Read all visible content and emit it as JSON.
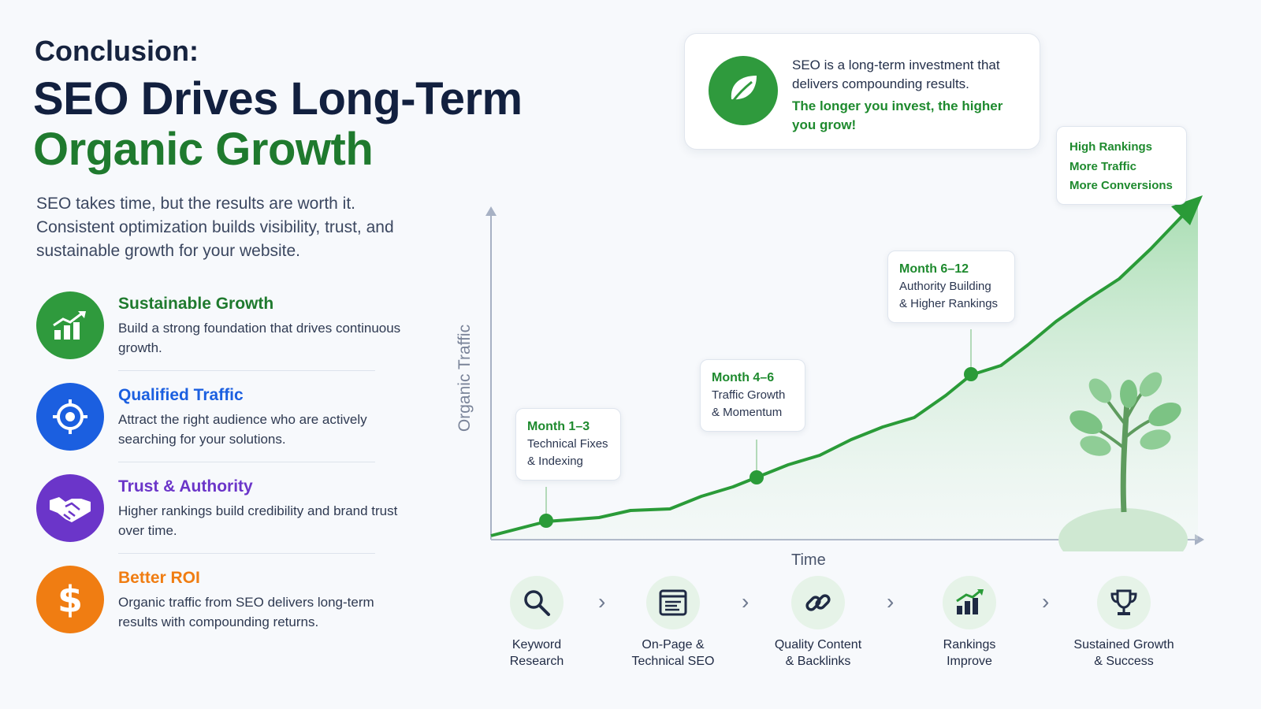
{
  "header": {
    "kicker": "Conclusion:",
    "title_line1": "SEO Drives Long-Term",
    "title_line2": "Organic Growth",
    "intro": "SEO takes time, but the results are worth it. Consistent optimization builds visibility, trust, and sustainable growth for your website."
  },
  "benefits": [
    {
      "title": "Sustainable Growth",
      "desc": "Build a strong foundation that drives continuous growth.",
      "color": "#2f9a3d",
      "icon": "bar-growth-icon"
    },
    {
      "title": "Qualified Traffic",
      "desc": "Attract the right audience who are actively searching for your solutions.",
      "color": "#1b5fe0",
      "icon": "target-icon"
    },
    {
      "title": "Trust & Authority",
      "desc": "Higher rankings build credibility and brand trust over time.",
      "color": "#6b35c9",
      "icon": "handshake-icon"
    },
    {
      "title": "Better ROI",
      "desc": "Organic traffic from SEO delivers long-term results with compounding returns.",
      "color": "#f07d12",
      "icon": "dollar-icon"
    }
  ],
  "top_card": {
    "line1": "SEO is a long-term investment that delivers compounding results.",
    "line2": "The longer you invest, the higher you grow!"
  },
  "chart": {
    "ylabel": "Organic Traffic",
    "xlabel": "Time",
    "milestones": [
      {
        "title": "Month 1–3",
        "l1": "Technical Fixes",
        "l2": "& Indexing"
      },
      {
        "title": "Month 4–6",
        "l1": "Traffic Growth",
        "l2": "& Momentum"
      },
      {
        "title": "Month 6–12",
        "l1": "Authority Building",
        "l2": "& Higher Rankings"
      }
    ],
    "end_card": [
      "High Rankings",
      "More Traffic",
      "More Conversions"
    ]
  },
  "steps": [
    {
      "l1": "Keyword",
      "l2": "Research",
      "icon": "search-icon"
    },
    {
      "l1": "On-Page &",
      "l2": "Technical SEO",
      "icon": "webpage-icon"
    },
    {
      "l1": "Quality Content",
      "l2": "& Backlinks",
      "icon": "link-icon"
    },
    {
      "l1": "Rankings",
      "l2": "Improve",
      "icon": "rankings-icon"
    },
    {
      "l1": "Sustained Growth",
      "l2": "& Success",
      "icon": "trophy-icon"
    }
  ],
  "colors": {
    "green": "#2f9a3d",
    "dark_green": "#1f7a2e",
    "navy": "#12203f",
    "blue": "#1b5fe0",
    "purple": "#6b35c9",
    "orange": "#f07d12"
  }
}
